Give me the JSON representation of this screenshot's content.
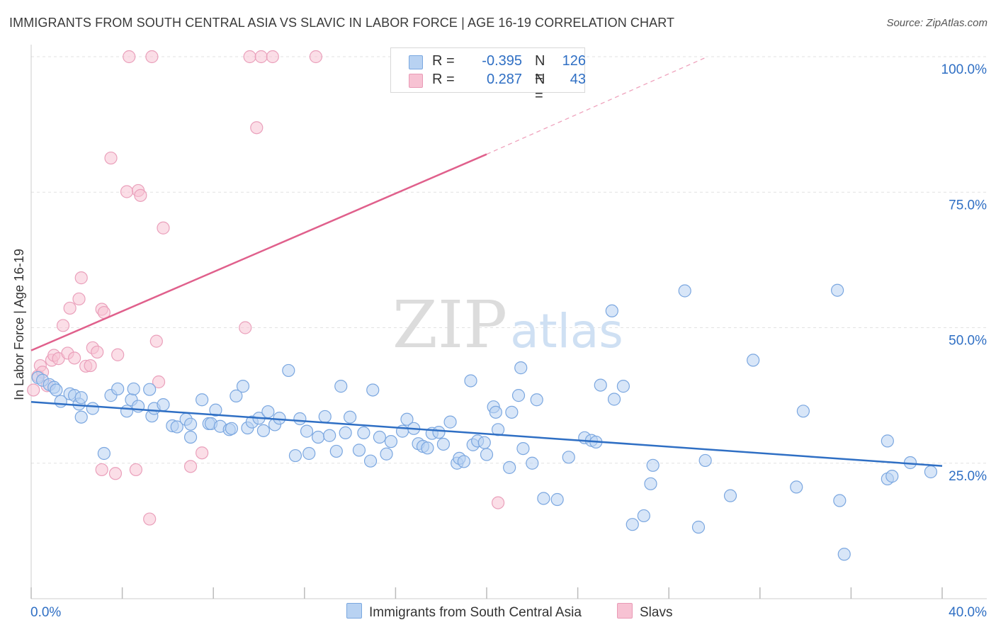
{
  "title": "IMMIGRANTS FROM SOUTH CENTRAL ASIA VS SLAVIC IN LABOR FORCE | AGE 16-19 CORRELATION CHART",
  "source": "Source: ZipAtlas.com",
  "watermark": {
    "zip": "ZIP",
    "atlas": "atlas"
  },
  "colors": {
    "blue": "#2f6fc4",
    "blue_fill": "#b8d2f2",
    "pink": "#e0608c",
    "pink_fill": "#f7c2d3"
  },
  "legend": {
    "r_label": "R =",
    "n_label": "N =",
    "blue": {
      "r": "-0.395",
      "n": "126"
    },
    "pink": {
      "r": "0.287",
      "n": "43"
    }
  },
  "series_legend": {
    "blue": "Immigrants from South Central Asia",
    "pink": "Slavs"
  },
  "chart_data": {
    "type": "scatter",
    "title": "IMMIGRANTS FROM SOUTH CENTRAL ASIA VS SLAVIC IN LABOR FORCE | AGE 16-19 CORRELATION CHART",
    "xlabel": "",
    "ylabel": "In Labor Force | Age 16-19",
    "xlim": [
      0,
      40
    ],
    "ylim": [
      0,
      102
    ],
    "x_tick_labels": [
      "0.0%",
      "40.0%"
    ],
    "y_ticks": [
      25,
      50,
      75,
      100
    ],
    "y_tick_labels": [
      "25.0%",
      "50.0%",
      "75.0%",
      "100.0%"
    ],
    "grid": true,
    "legend_position": "top-center",
    "series": [
      {
        "name": "Immigrants from South Central Asia",
        "color": "#2f6fc4",
        "R": -0.395,
        "N": 126,
        "trend": {
          "x0": 0,
          "y0": 36.3,
          "x1": 40,
          "y1": 24.5
        },
        "points": [
          [
            0.3,
            40.8
          ],
          [
            0.5,
            40.3
          ],
          [
            0.8,
            39.5
          ],
          [
            1.0,
            39.0
          ],
          [
            1.1,
            38.5
          ],
          [
            1.3,
            36.4
          ],
          [
            1.7,
            37.8
          ],
          [
            1.9,
            37.5
          ],
          [
            2.1,
            35.9
          ],
          [
            2.2,
            33.5
          ],
          [
            2.2,
            37.1
          ],
          [
            2.7,
            35.1
          ],
          [
            3.2,
            26.8
          ],
          [
            3.5,
            37.5
          ],
          [
            3.8,
            38.7
          ],
          [
            4.2,
            34.6
          ],
          [
            4.4,
            36.7
          ],
          [
            4.5,
            38.7
          ],
          [
            4.7,
            35.5
          ],
          [
            5.2,
            38.6
          ],
          [
            5.3,
            33.7
          ],
          [
            5.4,
            35.1
          ],
          [
            5.8,
            35.8
          ],
          [
            6.2,
            31.9
          ],
          [
            6.4,
            31.7
          ],
          [
            6.8,
            33.1
          ],
          [
            7.0,
            29.8
          ],
          [
            7.0,
            32.2
          ],
          [
            7.5,
            36.7
          ],
          [
            7.8,
            32.3
          ],
          [
            7.9,
            32.3
          ],
          [
            8.1,
            34.8
          ],
          [
            8.3,
            31.8
          ],
          [
            8.7,
            31.2
          ],
          [
            8.8,
            31.4
          ],
          [
            9.0,
            37.4
          ],
          [
            9.3,
            39.2
          ],
          [
            9.5,
            31.5
          ],
          [
            9.7,
            32.6
          ],
          [
            10.0,
            33.3
          ],
          [
            10.2,
            31.0
          ],
          [
            10.4,
            34.5
          ],
          [
            10.7,
            32.1
          ],
          [
            10.9,
            33.3
          ],
          [
            11.3,
            42.1
          ],
          [
            11.6,
            26.4
          ],
          [
            11.8,
            33.2
          ],
          [
            12.1,
            30.9
          ],
          [
            12.2,
            26.8
          ],
          [
            12.6,
            29.8
          ],
          [
            12.9,
            33.6
          ],
          [
            13.1,
            30.1
          ],
          [
            13.4,
            27.2
          ],
          [
            13.6,
            39.2
          ],
          [
            13.8,
            30.6
          ],
          [
            14.0,
            33.5
          ],
          [
            14.4,
            27.4
          ],
          [
            14.6,
            30.6
          ],
          [
            14.9,
            25.4
          ],
          [
            15.0,
            38.5
          ],
          [
            15.3,
            29.8
          ],
          [
            15.6,
            26.7
          ],
          [
            15.8,
            29.0
          ],
          [
            16.3,
            30.9
          ],
          [
            16.5,
            33.1
          ],
          [
            16.8,
            31.4
          ],
          [
            17.0,
            28.6
          ],
          [
            17.2,
            28.1
          ],
          [
            17.4,
            27.8
          ],
          [
            17.6,
            30.5
          ],
          [
            17.9,
            30.7
          ],
          [
            18.1,
            28.5
          ],
          [
            18.4,
            32.6
          ],
          [
            18.7,
            25.0
          ],
          [
            18.8,
            25.9
          ],
          [
            19.0,
            25.3
          ],
          [
            19.3,
            40.2
          ],
          [
            19.4,
            28.4
          ],
          [
            19.6,
            29.1
          ],
          [
            19.9,
            28.8
          ],
          [
            20.0,
            26.6
          ],
          [
            20.3,
            35.4
          ],
          [
            20.4,
            34.4
          ],
          [
            20.5,
            31.2
          ],
          [
            21.0,
            24.2
          ],
          [
            21.1,
            34.4
          ],
          [
            21.4,
            37.5
          ],
          [
            21.5,
            42.6
          ],
          [
            21.6,
            27.7
          ],
          [
            22.0,
            25.0
          ],
          [
            22.2,
            36.7
          ],
          [
            22.5,
            18.5
          ],
          [
            23.1,
            18.3
          ],
          [
            23.6,
            26.1
          ],
          [
            24.3,
            29.7
          ],
          [
            24.6,
            29.2
          ],
          [
            24.8,
            28.9
          ],
          [
            25.0,
            39.4
          ],
          [
            25.5,
            53.1
          ],
          [
            25.6,
            36.8
          ],
          [
            26.0,
            39.2
          ],
          [
            26.4,
            13.7
          ],
          [
            26.9,
            15.3
          ],
          [
            27.2,
            21.2
          ],
          [
            27.3,
            24.6
          ],
          [
            28.7,
            56.8
          ],
          [
            29.3,
            13.2
          ],
          [
            29.6,
            25.5
          ],
          [
            30.7,
            19.0
          ],
          [
            31.7,
            44.0
          ],
          [
            33.6,
            20.6
          ],
          [
            33.9,
            34.6
          ],
          [
            35.4,
            56.9
          ],
          [
            35.5,
            18.1
          ],
          [
            35.7,
            8.2
          ],
          [
            37.6,
            29.1
          ],
          [
            37.6,
            22.1
          ],
          [
            37.8,
            22.6
          ],
          [
            38.6,
            25.1
          ],
          [
            39.5,
            23.4
          ]
        ]
      },
      {
        "name": "Slavs",
        "color": "#e0608c",
        "R": 0.287,
        "N": 43,
        "trend": {
          "x0": 0,
          "y0": 45.8,
          "x1": 20,
          "y1": 82.0
        },
        "trend_dashed": {
          "x0": 20,
          "y0": 82.0,
          "x1": 29.7,
          "y1": 100
        },
        "points": [
          [
            0.1,
            38.5
          ],
          [
            0.3,
            41.1
          ],
          [
            0.4,
            43.0
          ],
          [
            0.5,
            41.8
          ],
          [
            0.7,
            39.3
          ],
          [
            0.9,
            44.0
          ],
          [
            1.0,
            44.9
          ],
          [
            1.2,
            44.3
          ],
          [
            1.4,
            50.4
          ],
          [
            1.6,
            45.3
          ],
          [
            1.7,
            53.6
          ],
          [
            1.9,
            44.4
          ],
          [
            2.1,
            55.3
          ],
          [
            2.2,
            59.2
          ],
          [
            2.4,
            42.9
          ],
          [
            2.6,
            43.0
          ],
          [
            2.7,
            46.3
          ],
          [
            2.9,
            45.5
          ],
          [
            3.1,
            23.8
          ],
          [
            3.1,
            53.4
          ],
          [
            3.2,
            52.8
          ],
          [
            3.5,
            81.3
          ],
          [
            3.7,
            23.1
          ],
          [
            3.8,
            45.0
          ],
          [
            4.2,
            75.1
          ],
          [
            4.3,
            100
          ],
          [
            4.6,
            23.8
          ],
          [
            4.7,
            75.3
          ],
          [
            4.8,
            74.4
          ],
          [
            5.2,
            14.7
          ],
          [
            5.3,
            100
          ],
          [
            5.5,
            47.5
          ],
          [
            5.6,
            40.0
          ],
          [
            5.8,
            68.4
          ],
          [
            7.0,
            24.4
          ],
          [
            7.5,
            26.9
          ],
          [
            9.4,
            50.0
          ],
          [
            9.6,
            100
          ],
          [
            9.9,
            86.9
          ],
          [
            10.1,
            100
          ],
          [
            10.6,
            100
          ],
          [
            12.5,
            100
          ],
          [
            20.5,
            17.7
          ]
        ]
      }
    ]
  }
}
